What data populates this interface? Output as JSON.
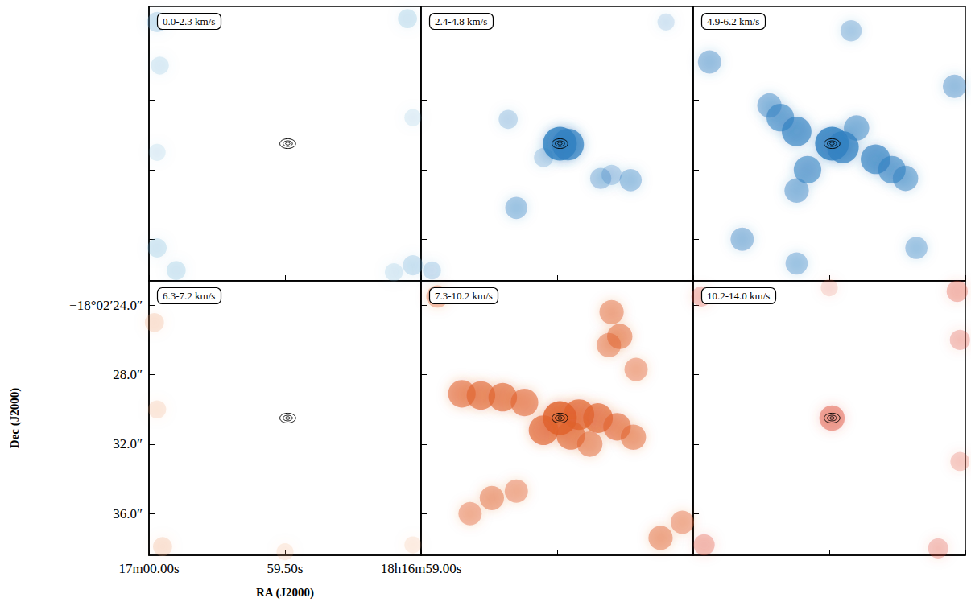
{
  "chart_data": [
    {
      "type": "image",
      "title": "0.0-2.3 km/s",
      "color": "#6aaed6",
      "tick_labels": false,
      "xlim": [
        60.0,
        59.0
      ],
      "xticks": [
        {
          "value": 60.0,
          "label": "17m00.00s"
        },
        {
          "value": 59.5,
          "label": "59.50s"
        },
        {
          "value": 59.0,
          "label": "18h16m59.00s"
        }
      ],
      "ylim": [
        22.6,
        38.4
      ],
      "yticks": [
        {
          "value": 24,
          "label": "−18°02′24.0″"
        },
        {
          "value": 28,
          "label": "28.0″"
        },
        {
          "value": 32,
          "label": "32.0″"
        },
        {
          "value": 36,
          "label": "36.0″"
        }
      ],
      "emission": [
        [
          59.97,
          23.5,
          0.35
        ],
        [
          59.96,
          26.0,
          0.25
        ],
        [
          59.97,
          36.5,
          0.3
        ],
        [
          59.9,
          37.8,
          0.3
        ],
        [
          59.05,
          23.3,
          0.3
        ],
        [
          59.03,
          37.5,
          0.35
        ],
        [
          59.1,
          37.9,
          0.25
        ],
        [
          59.97,
          31.0,
          0.2
        ],
        [
          59.03,
          29.0,
          0.2
        ]
      ],
      "contours": [
        [
          59.49,
          30.5,
          0.029,
          0.28
        ],
        [
          59.49,
          30.5,
          0.017,
          0.16
        ],
        [
          59.49,
          30.5,
          0.008,
          0.08
        ]
      ]
    },
    {
      "type": "image",
      "title": "2.4-4.8 km/s",
      "color": "#2f7fc1",
      "tick_labels": false,
      "xlim": [
        60.0,
        59.0
      ],
      "xticks": [
        {
          "value": 60.0,
          "label": "17m00.00s"
        },
        {
          "value": 59.5,
          "label": "59.50s"
        },
        {
          "value": 59.0,
          "label": "18h16m59.00s"
        }
      ],
      "ylim": [
        22.6,
        38.4
      ],
      "yticks": [
        {
          "value": 24,
          "label": "−18°02′24.0″"
        },
        {
          "value": 28,
          "label": "28.0″"
        },
        {
          "value": 32,
          "label": "32.0″"
        },
        {
          "value": 36,
          "label": "36.0″"
        }
      ],
      "emission": [
        [
          59.49,
          30.5,
          1.0
        ],
        [
          59.46,
          30.55,
          0.9
        ],
        [
          59.68,
          29.1,
          0.3
        ],
        [
          59.65,
          34.2,
          0.45
        ],
        [
          59.34,
          32.5,
          0.4
        ],
        [
          59.3,
          32.3,
          0.35
        ],
        [
          59.23,
          32.6,
          0.45
        ],
        [
          59.55,
          31.3,
          0.3
        ],
        [
          59.96,
          37.8,
          0.25
        ],
        [
          59.1,
          23.5,
          0.2
        ]
      ],
      "contours": [
        [
          59.49,
          30.5,
          0.029,
          0.28
        ],
        [
          59.49,
          30.5,
          0.017,
          0.16
        ],
        [
          59.49,
          30.5,
          0.008,
          0.08
        ]
      ]
    },
    {
      "type": "image",
      "title": "4.9-6.2 km/s",
      "color": "#2f7fc1",
      "tick_labels": false,
      "xlim": [
        60.0,
        59.0
      ],
      "xticks": [
        {
          "value": 60.0,
          "label": "17m00.00s"
        },
        {
          "value": 59.5,
          "label": "59.50s"
        },
        {
          "value": 59.0,
          "label": "18h16m59.00s"
        }
      ],
      "ylim": [
        22.6,
        38.4
      ],
      "yticks": [
        {
          "value": 24,
          "label": "−18°02′24.0″"
        },
        {
          "value": 28,
          "label": "28.0″"
        },
        {
          "value": 32,
          "label": "32.0″"
        },
        {
          "value": 36,
          "label": "36.0″"
        }
      ],
      "emission": [
        [
          59.49,
          30.5,
          1.0
        ],
        [
          59.45,
          30.7,
          0.9
        ],
        [
          59.62,
          29.8,
          0.8
        ],
        [
          59.68,
          29.0,
          0.7
        ],
        [
          59.72,
          28.3,
          0.55
        ],
        [
          59.33,
          31.4,
          0.8
        ],
        [
          59.27,
          32.0,
          0.7
        ],
        [
          59.22,
          32.5,
          0.6
        ],
        [
          59.58,
          32.0,
          0.7
        ],
        [
          59.62,
          33.2,
          0.55
        ],
        [
          59.4,
          29.6,
          0.6
        ],
        [
          59.94,
          25.8,
          0.5
        ],
        [
          59.04,
          27.2,
          0.5
        ],
        [
          59.82,
          36.0,
          0.5
        ],
        [
          59.62,
          37.4,
          0.45
        ],
        [
          59.42,
          24.0,
          0.4
        ],
        [
          59.18,
          36.5,
          0.45
        ]
      ],
      "contours": [
        [
          59.49,
          30.5,
          0.029,
          0.28
        ],
        [
          59.49,
          30.5,
          0.017,
          0.16
        ],
        [
          59.49,
          30.5,
          0.008,
          0.08
        ]
      ]
    },
    {
      "type": "image",
      "title": "6.3-7.2 km/s",
      "color": "#f0a070",
      "xlabel": "RA (J2000)",
      "ylabel": "Dec (J2000)",
      "xlim": [
        60.0,
        59.0
      ],
      "xticks": [
        {
          "value": 60.0,
          "label": "17m00.00s"
        },
        {
          "value": 59.5,
          "label": "59.50s"
        },
        {
          "value": 59.0,
          "label": "18h16m59.00s"
        }
      ],
      "ylim": [
        22.6,
        38.4
      ],
      "yticks": [
        {
          "value": 24,
          "label": "−18°02′24.0″"
        },
        {
          "value": 28,
          "label": "28.0″"
        },
        {
          "value": 32,
          "label": "32.0″"
        },
        {
          "value": 36,
          "label": "36.0″"
        }
      ],
      "emission": [
        [
          59.98,
          25.0,
          0.3
        ],
        [
          59.97,
          30.0,
          0.25
        ],
        [
          59.95,
          37.9,
          0.3
        ],
        [
          59.5,
          38.2,
          0.2
        ],
        [
          59.03,
          37.8,
          0.2
        ]
      ],
      "contours": [
        [
          59.49,
          30.5,
          0.029,
          0.28
        ],
        [
          59.49,
          30.5,
          0.017,
          0.16
        ],
        [
          59.49,
          30.5,
          0.008,
          0.08
        ]
      ]
    },
    {
      "type": "image",
      "title": "7.3-10.2 km/s",
      "color": "#e0602a",
      "tick_labels": false,
      "xlim": [
        60.0,
        59.0
      ],
      "xticks": [
        {
          "value": 60.0,
          "label": "17m00.00s"
        },
        {
          "value": 59.5,
          "label": "59.50s"
        },
        {
          "value": 59.0,
          "label": "18h16m59.00s"
        }
      ],
      "ylim": [
        22.6,
        38.4
      ],
      "yticks": [
        {
          "value": 24,
          "label": "−18°02′24.0″"
        },
        {
          "value": 28,
          "label": "28.0″"
        },
        {
          "value": 32,
          "label": "32.0″"
        },
        {
          "value": 36,
          "label": "36.0″"
        }
      ],
      "emission": [
        [
          59.85,
          29.1,
          0.7
        ],
        [
          59.78,
          29.2,
          0.75
        ],
        [
          59.7,
          29.3,
          0.75
        ],
        [
          59.62,
          29.6,
          0.7
        ],
        [
          59.49,
          30.5,
          1.0
        ],
        [
          59.42,
          30.3,
          0.85
        ],
        [
          59.35,
          30.5,
          0.8
        ],
        [
          59.28,
          31.0,
          0.7
        ],
        [
          59.22,
          31.6,
          0.6
        ],
        [
          59.55,
          31.2,
          0.8
        ],
        [
          59.45,
          31.5,
          0.75
        ],
        [
          59.38,
          32.0,
          0.6
        ],
        [
          59.3,
          24.4,
          0.55
        ],
        [
          59.27,
          25.8,
          0.6
        ],
        [
          59.31,
          26.3,
          0.55
        ],
        [
          59.21,
          27.7,
          0.5
        ],
        [
          59.74,
          35.1,
          0.55
        ],
        [
          59.82,
          36.0,
          0.5
        ],
        [
          59.65,
          34.7,
          0.5
        ],
        [
          59.12,
          37.4,
          0.55
        ],
        [
          59.04,
          36.5,
          0.5
        ],
        [
          59.94,
          23.5,
          0.45
        ]
      ],
      "contours": [
        [
          59.49,
          30.5,
          0.029,
          0.28
        ],
        [
          59.49,
          30.5,
          0.017,
          0.16
        ],
        [
          59.49,
          30.5,
          0.008,
          0.08
        ]
      ]
    },
    {
      "type": "image",
      "title": "10.2-14.0 km/s",
      "color": "#e0503a",
      "tick_labels": false,
      "xlim": [
        60.0,
        59.0
      ],
      "xticks": [
        {
          "value": 60.0,
          "label": "17m00.00s"
        },
        {
          "value": 59.5,
          "label": "59.50s"
        },
        {
          "value": 59.0,
          "label": "18h16m59.00s"
        }
      ],
      "ylim": [
        22.6,
        38.4
      ],
      "yticks": [
        {
          "value": 24,
          "label": "−18°02′24.0″"
        },
        {
          "value": 28,
          "label": "28.0″"
        },
        {
          "value": 32,
          "label": "32.0″"
        },
        {
          "value": 36,
          "label": "36.0″"
        }
      ],
      "emission": [
        [
          59.49,
          30.5,
          0.6
        ],
        [
          59.03,
          23.2,
          0.4
        ],
        [
          59.02,
          26.0,
          0.35
        ],
        [
          59.97,
          23.5,
          0.35
        ],
        [
          59.96,
          37.8,
          0.4
        ],
        [
          59.1,
          38.0,
          0.35
        ],
        [
          59.02,
          33.0,
          0.3
        ],
        [
          59.5,
          23.0,
          0.2
        ]
      ],
      "contours": [
        [
          59.49,
          30.5,
          0.029,
          0.28
        ],
        [
          59.49,
          30.5,
          0.017,
          0.16
        ],
        [
          59.49,
          30.5,
          0.008,
          0.08
        ]
      ]
    }
  ]
}
